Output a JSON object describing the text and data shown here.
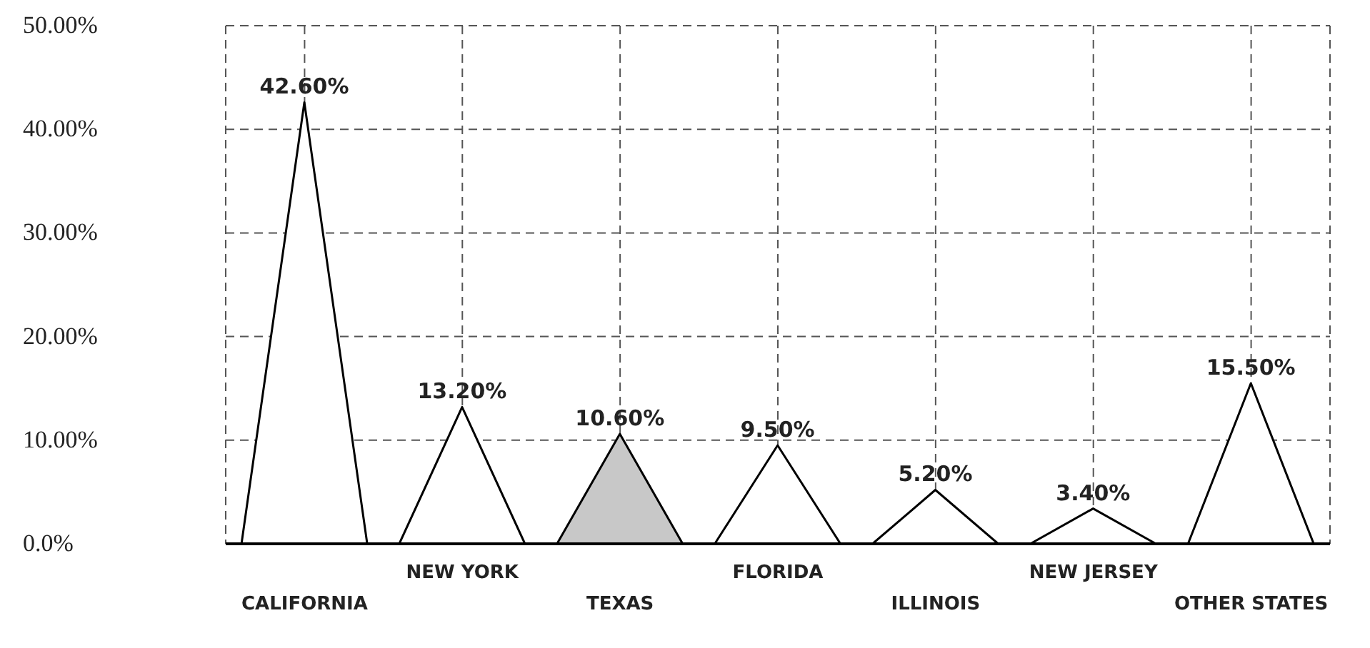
{
  "chart_data": {
    "type": "bar",
    "categories": [
      "CALIFORNIA",
      "NEW YORK",
      "TEXAS",
      "FLORIDA",
      "ILLINOIS",
      "NEW JERSEY",
      "OTHER STATES"
    ],
    "values": [
      42.6,
      13.2,
      10.6,
      9.5,
      5.2,
      3.4,
      15.5
    ],
    "value_labels": [
      "42.60%",
      "13.20%",
      "10.60%",
      "9.50%",
      "5.20%",
      "3.40%",
      "15.50%"
    ],
    "colors": [
      "#ffffff",
      "#ffffff",
      "#c8c8c8",
      "#ffffff",
      "#ffffff",
      "#ffffff",
      "#ffffff"
    ],
    "ylim": [
      0,
      50
    ],
    "yticks": [
      {
        "value": 0,
        "label": "0.0%"
      },
      {
        "value": 10,
        "label": "10.00%"
      },
      {
        "value": 20,
        "label": "20.00%"
      },
      {
        "value": 30,
        "label": "30.00%"
      },
      {
        "value": 40,
        "label": "40.00%"
      },
      {
        "value": 50,
        "label": "50.00%"
      }
    ],
    "grid": true
  }
}
